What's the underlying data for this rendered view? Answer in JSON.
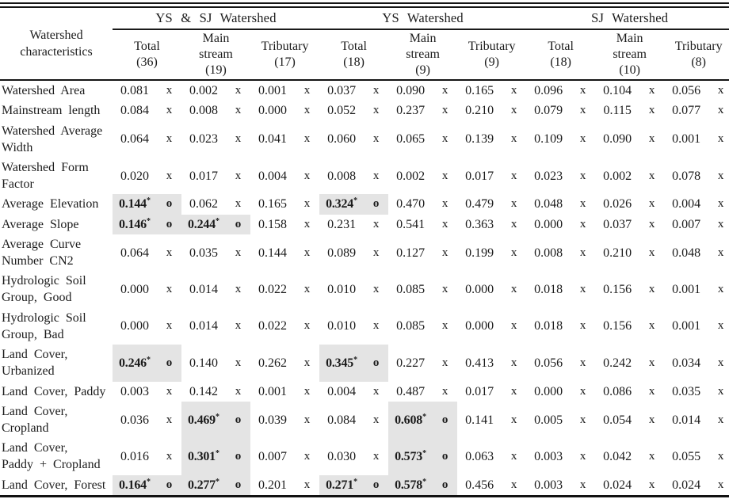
{
  "table": {
    "highlight_color": "#e4e4e4",
    "text_color": "#1b1b1b",
    "sig_suffix": "*",
    "corner_label": "Watershed\ncharacteristics",
    "groups": [
      {
        "label": "YS & SJ Watershed",
        "columns": [
          "Total\n(36)",
          "Main\nstream\n(19)",
          "Tributary\n(17)"
        ]
      },
      {
        "label": "YS Watershed",
        "columns": [
          "Total\n(18)",
          "Main\nstream\n(9)",
          "Tributary\n(9)"
        ]
      },
      {
        "label": "SJ Watershed",
        "columns": [
          "Total\n(18)",
          "Main\nstream\n(10)",
          "Tributary\n(8)"
        ]
      }
    ],
    "rows": [
      {
        "label": "Watershed Area",
        "cells": [
          {
            "v": "0.081",
            "m": "x"
          },
          {
            "v": "0.002",
            "m": "x"
          },
          {
            "v": "0.001",
            "m": "x"
          },
          {
            "v": "0.037",
            "m": "x"
          },
          {
            "v": "0.090",
            "m": "x"
          },
          {
            "v": "0.165",
            "m": "x"
          },
          {
            "v": "0.096",
            "m": "x"
          },
          {
            "v": "0.104",
            "m": "x"
          },
          {
            "v": "0.056",
            "m": "x"
          }
        ]
      },
      {
        "label": "Mainstream length",
        "cells": [
          {
            "v": "0.084",
            "m": "x"
          },
          {
            "v": "0.008",
            "m": "x"
          },
          {
            "v": "0.000",
            "m": "x"
          },
          {
            "v": "0.052",
            "m": "x"
          },
          {
            "v": "0.237",
            "m": "x"
          },
          {
            "v": "0.210",
            "m": "x"
          },
          {
            "v": "0.079",
            "m": "x"
          },
          {
            "v": "0.115",
            "m": "x"
          },
          {
            "v": "0.077",
            "m": "x"
          }
        ]
      },
      {
        "label": "Watershed Average\nWidth",
        "cells": [
          {
            "v": "0.064",
            "m": "x"
          },
          {
            "v": "0.023",
            "m": "x"
          },
          {
            "v": "0.041",
            "m": "x"
          },
          {
            "v": "0.060",
            "m": "x"
          },
          {
            "v": "0.065",
            "m": "x"
          },
          {
            "v": "0.139",
            "m": "x"
          },
          {
            "v": "0.109",
            "m": "x"
          },
          {
            "v": "0.090",
            "m": "x"
          },
          {
            "v": "0.001",
            "m": "x"
          }
        ]
      },
      {
        "label": "Watershed Form\nFactor",
        "cells": [
          {
            "v": "0.020",
            "m": "x"
          },
          {
            "v": "0.017",
            "m": "x"
          },
          {
            "v": "0.004",
            "m": "x"
          },
          {
            "v": "0.008",
            "m": "x"
          },
          {
            "v": "0.002",
            "m": "x"
          },
          {
            "v": "0.017",
            "m": "x"
          },
          {
            "v": "0.023",
            "m": "x"
          },
          {
            "v": "0.002",
            "m": "x"
          },
          {
            "v": "0.078",
            "m": "x"
          }
        ]
      },
      {
        "label": "Average Elevation",
        "cells": [
          {
            "v": "0.144",
            "m": "o",
            "s": true
          },
          {
            "v": "0.062",
            "m": "x"
          },
          {
            "v": "0.165",
            "m": "x"
          },
          {
            "v": "0.324",
            "m": "o",
            "s": true
          },
          {
            "v": "0.470",
            "m": "x"
          },
          {
            "v": "0.479",
            "m": "x"
          },
          {
            "v": "0.048",
            "m": "x"
          },
          {
            "v": "0.026",
            "m": "x"
          },
          {
            "v": "0.004",
            "m": "x"
          }
        ]
      },
      {
        "label": "Average Slope",
        "cells": [
          {
            "v": "0.146",
            "m": "o",
            "s": true
          },
          {
            "v": "0.244",
            "m": "o",
            "s": true
          },
          {
            "v": "0.158",
            "m": "x"
          },
          {
            "v": "0.231",
            "m": "x"
          },
          {
            "v": "0.541",
            "m": "x"
          },
          {
            "v": "0.363",
            "m": "x"
          },
          {
            "v": "0.000",
            "m": "x"
          },
          {
            "v": "0.037",
            "m": "x"
          },
          {
            "v": "0.007",
            "m": "x"
          }
        ]
      },
      {
        "label": "Average Curve\nNumber CN2",
        "cells": [
          {
            "v": "0.064",
            "m": "x"
          },
          {
            "v": "0.035",
            "m": "x"
          },
          {
            "v": "0.144",
            "m": "x"
          },
          {
            "v": "0.089",
            "m": "x"
          },
          {
            "v": "0.127",
            "m": "x"
          },
          {
            "v": "0.199",
            "m": "x"
          },
          {
            "v": "0.008",
            "m": "x"
          },
          {
            "v": "0.210",
            "m": "x"
          },
          {
            "v": "0.048",
            "m": "x"
          }
        ]
      },
      {
        "label": "Hydrologic Soil\nGroup, Good",
        "cells": [
          {
            "v": "0.000",
            "m": "x"
          },
          {
            "v": "0.014",
            "m": "x"
          },
          {
            "v": "0.022",
            "m": "x"
          },
          {
            "v": "0.010",
            "m": "x"
          },
          {
            "v": "0.085",
            "m": "x"
          },
          {
            "v": "0.000",
            "m": "x"
          },
          {
            "v": "0.018",
            "m": "x"
          },
          {
            "v": "0.156",
            "m": "x"
          },
          {
            "v": "0.001",
            "m": "x"
          }
        ]
      },
      {
        "label": "Hydrologic Soil\nGroup, Bad",
        "cells": [
          {
            "v": "0.000",
            "m": "x"
          },
          {
            "v": "0.014",
            "m": "x"
          },
          {
            "v": "0.022",
            "m": "x"
          },
          {
            "v": "0.010",
            "m": "x"
          },
          {
            "v": "0.085",
            "m": "x"
          },
          {
            "v": "0.000",
            "m": "x"
          },
          {
            "v": "0.018",
            "m": "x"
          },
          {
            "v": "0.156",
            "m": "x"
          },
          {
            "v": "0.001",
            "m": "x"
          }
        ]
      },
      {
        "label": "Land Cover,\nUrbanized",
        "cells": [
          {
            "v": "0.246",
            "m": "o",
            "s": true
          },
          {
            "v": "0.140",
            "m": "x"
          },
          {
            "v": "0.262",
            "m": "x"
          },
          {
            "v": "0.345",
            "m": "o",
            "s": true
          },
          {
            "v": "0.227",
            "m": "x"
          },
          {
            "v": "0.413",
            "m": "x"
          },
          {
            "v": "0.056",
            "m": "x"
          },
          {
            "v": "0.242",
            "m": "x"
          },
          {
            "v": "0.034",
            "m": "x"
          }
        ]
      },
      {
        "label": "Land Cover, Paddy",
        "cells": [
          {
            "v": "0.003",
            "m": "x"
          },
          {
            "v": "0.142",
            "m": "x"
          },
          {
            "v": "0.001",
            "m": "x"
          },
          {
            "v": "0.004",
            "m": "x"
          },
          {
            "v": "0.487",
            "m": "x"
          },
          {
            "v": "0.017",
            "m": "x"
          },
          {
            "v": "0.000",
            "m": "x"
          },
          {
            "v": "0.086",
            "m": "x"
          },
          {
            "v": "0.035",
            "m": "x"
          }
        ]
      },
      {
        "label": "Land Cover,\nCropland",
        "cells": [
          {
            "v": "0.036",
            "m": "x"
          },
          {
            "v": "0.469",
            "m": "o",
            "s": true
          },
          {
            "v": "0.039",
            "m": "x"
          },
          {
            "v": "0.084",
            "m": "x"
          },
          {
            "v": "0.608",
            "m": "o",
            "s": true
          },
          {
            "v": "0.141",
            "m": "x"
          },
          {
            "v": "0.005",
            "m": "x"
          },
          {
            "v": "0.054",
            "m": "x"
          },
          {
            "v": "0.014",
            "m": "x"
          }
        ]
      },
      {
        "label": "Land Cover,\nPaddy + Cropland",
        "cells": [
          {
            "v": "0.016",
            "m": "x"
          },
          {
            "v": "0.301",
            "m": "o",
            "s": true
          },
          {
            "v": "0.007",
            "m": "x"
          },
          {
            "v": "0.030",
            "m": "x"
          },
          {
            "v": "0.573",
            "m": "o",
            "s": true
          },
          {
            "v": "0.063",
            "m": "x"
          },
          {
            "v": "0.003",
            "m": "x"
          },
          {
            "v": "0.042",
            "m": "x"
          },
          {
            "v": "0.055",
            "m": "x"
          }
        ]
      },
      {
        "label": "Land Cover, Forest",
        "cells": [
          {
            "v": "0.164",
            "m": "o",
            "s": true
          },
          {
            "v": "0.277",
            "m": "o",
            "s": true
          },
          {
            "v": "0.201",
            "m": "x"
          },
          {
            "v": "0.271",
            "m": "o",
            "s": true
          },
          {
            "v": "0.578",
            "m": "o",
            "s": true
          },
          {
            "v": "0.456",
            "m": "x"
          },
          {
            "v": "0.003",
            "m": "x"
          },
          {
            "v": "0.024",
            "m": "x"
          },
          {
            "v": "0.024",
            "m": "x"
          }
        ]
      }
    ]
  }
}
